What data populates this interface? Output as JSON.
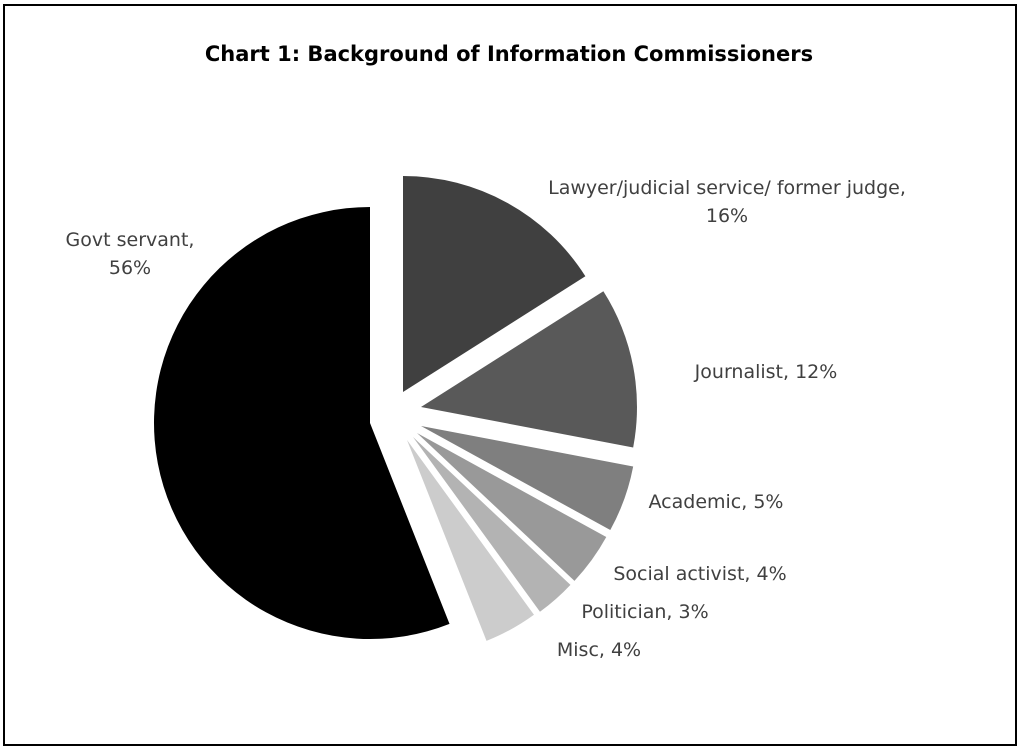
{
  "chart_data": {
    "type": "pie",
    "title": "Chart 1: Background of Information Commissioners",
    "slices": [
      {
        "name": "Lawyer/judicial service/ former judge",
        "label_line1": "Lawyer/judicial service/ former judge,",
        "label_line2": "16%",
        "value": 16,
        "color": "#404040"
      },
      {
        "name": "Journalist",
        "label_line1": "Journalist, 12%",
        "label_line2": "",
        "value": 12,
        "color": "#595959"
      },
      {
        "name": "Academic",
        "label_line1": "Academic, 5%",
        "label_line2": "",
        "value": 5,
        "color": "#7f7f7f"
      },
      {
        "name": "Social activist",
        "label_line1": "Social activist, 4%",
        "label_line2": "",
        "value": 4,
        "color": "#999999"
      },
      {
        "name": "Politician",
        "label_line1": "Politician, 3%",
        "label_line2": "",
        "value": 3,
        "color": "#b3b3b3"
      },
      {
        "name": "Misc",
        "label_line1": "Misc, 4%",
        "label_line2": "",
        "value": 4,
        "color": "#cccccc"
      },
      {
        "name": "Govt servant",
        "label_line1": "Govt servant,",
        "label_line2": "56%",
        "value": 56,
        "color": "#000000"
      }
    ],
    "legend": "none",
    "data_labels": "outside"
  }
}
